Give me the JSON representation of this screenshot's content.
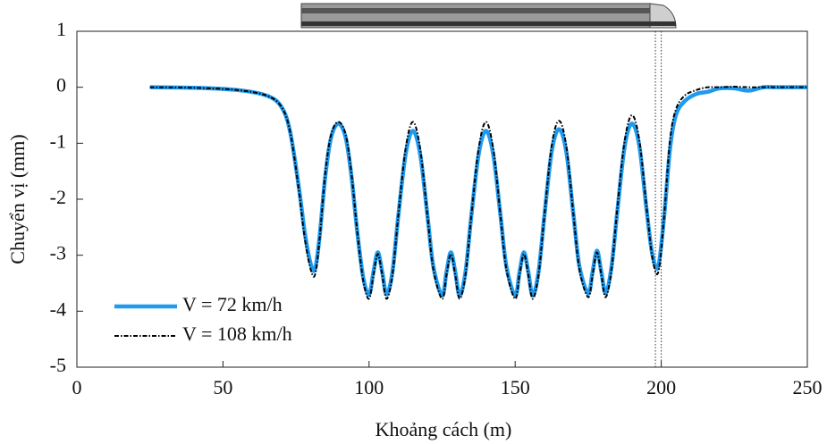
{
  "chart_data": {
    "type": "line",
    "xlabel": "Khoảng cách (m)",
    "ylabel": "Chuyển vị (mm)",
    "x": [
      25,
      40,
      55,
      65,
      70,
      73,
      76,
      78,
      80,
      81.5,
      83,
      85,
      87,
      89.5,
      92,
      94,
      96,
      98,
      100,
      101.5,
      103,
      104.5,
      106,
      108,
      110,
      112.5,
      115,
      117.5,
      120,
      122,
      125,
      126.5,
      128,
      129.5,
      131,
      133,
      135,
      137.5,
      140,
      142.5,
      145,
      147,
      150,
      151.5,
      153,
      154.5,
      156,
      158,
      160,
      162.5,
      165,
      167.5,
      170,
      172,
      175,
      176.5,
      178,
      179.5,
      181,
      183,
      185,
      187.5,
      190,
      192.5,
      195,
      197,
      199,
      201,
      203,
      205,
      208,
      212,
      216,
      220,
      225,
      230,
      235,
      240,
      250
    ],
    "series": [
      {
        "name": "V = 72 km/h",
        "color": "#1e9bf0",
        "dashed": false,
        "values": [
          0,
          -0.01,
          -0.05,
          -0.15,
          -0.35,
          -0.8,
          -1.8,
          -2.6,
          -3.15,
          -3.25,
          -2.7,
          -1.6,
          -0.9,
          -0.65,
          -0.9,
          -1.6,
          -2.6,
          -3.4,
          -3.7,
          -3.3,
          -2.95,
          -3.3,
          -3.7,
          -3.3,
          -2.3,
          -1.2,
          -0.78,
          -1.2,
          -2.3,
          -3.2,
          -3.72,
          -3.3,
          -2.95,
          -3.3,
          -3.72,
          -3.3,
          -2.3,
          -1.2,
          -0.78,
          -1.2,
          -2.3,
          -3.2,
          -3.72,
          -3.3,
          -2.95,
          -3.3,
          -3.72,
          -3.3,
          -2.3,
          -1.15,
          -0.75,
          -1.15,
          -2.3,
          -3.2,
          -3.68,
          -3.3,
          -2.92,
          -3.3,
          -3.68,
          -3.2,
          -2.2,
          -1.05,
          -0.65,
          -1.05,
          -2.2,
          -3.0,
          -3.2,
          -2.3,
          -1.1,
          -0.5,
          -0.25,
          -0.12,
          -0.08,
          -0.02,
          -0.02,
          -0.06,
          0,
          0,
          0
        ]
      },
      {
        "name": "V = 108 km/h",
        "color": "#000000",
        "dashed": true,
        "values": [
          0,
          -0.01,
          -0.05,
          -0.15,
          -0.35,
          -0.8,
          -1.85,
          -2.7,
          -3.25,
          -3.35,
          -2.75,
          -1.55,
          -0.85,
          -0.62,
          -0.85,
          -1.55,
          -2.6,
          -3.45,
          -3.78,
          -3.35,
          -2.98,
          -3.35,
          -3.78,
          -3.35,
          -2.3,
          -1.1,
          -0.62,
          -1.1,
          -2.3,
          -3.25,
          -3.78,
          -3.35,
          -2.98,
          -3.35,
          -3.78,
          -3.35,
          -2.3,
          -1.1,
          -0.62,
          -1.1,
          -2.3,
          -3.25,
          -3.78,
          -3.35,
          -2.98,
          -3.35,
          -3.78,
          -3.35,
          -2.3,
          -1.05,
          -0.6,
          -1.05,
          -2.3,
          -3.25,
          -3.75,
          -3.35,
          -2.95,
          -3.35,
          -3.75,
          -3.25,
          -2.15,
          -0.95,
          -0.5,
          -0.95,
          -2.15,
          -3.05,
          -3.3,
          -2.3,
          -0.95,
          -0.4,
          -0.15,
          -0.05,
          0,
          0,
          0.01,
          0,
          0,
          0,
          0
        ]
      }
    ],
    "vlines": [
      198,
      200
    ],
    "xlim": [
      0,
      250
    ],
    "ylim": [
      -5,
      1
    ],
    "xticks": [
      0,
      50,
      100,
      150,
      200,
      250
    ],
    "yticks": [
      1,
      0,
      -1,
      -2,
      -3,
      -4,
      -5
    ],
    "legend": "lower left"
  }
}
